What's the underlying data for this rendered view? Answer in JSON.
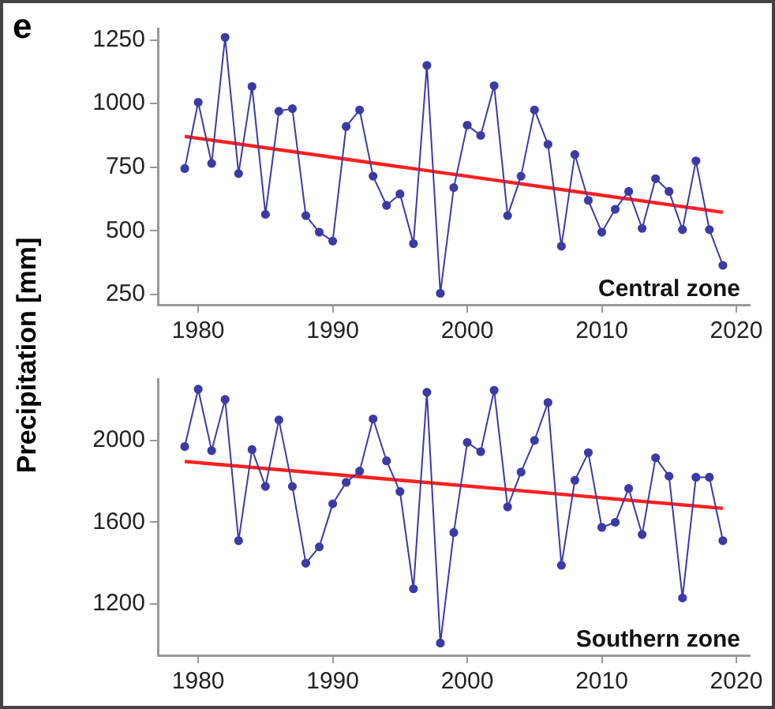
{
  "chart_data": [
    {
      "type": "line",
      "title": "e",
      "ylabel": "Precipitation [mm]",
      "annotations": [
        "Central zone"
      ],
      "marker": "circle",
      "grid": false,
      "legend": false,
      "x": [
        1979,
        1980,
        1981,
        1982,
        1983,
        1984,
        1985,
        1986,
        1987,
        1988,
        1989,
        1990,
        1991,
        1992,
        1993,
        1994,
        1995,
        1996,
        1997,
        1998,
        1999,
        2000,
        2001,
        2002,
        2003,
        2004,
        2005,
        2006,
        2007,
        2008,
        2009,
        2010,
        2011,
        2012,
        2013,
        2014,
        2015,
        2016,
        2017,
        2018,
        2019
      ],
      "xlim": [
        1977,
        2021
      ],
      "xticks": [
        1980,
        1990,
        2000,
        2010,
        2020
      ],
      "ylim": [
        210,
        1295
      ],
      "yticks": [
        250,
        500,
        750,
        1000,
        1250
      ],
      "series": [
        {
          "color": "#3b3ba6",
          "values": [
            745,
            1005,
            765,
            1260,
            725,
            1067,
            565,
            970,
            980,
            560,
            495,
            460,
            910,
            975,
            715,
            600,
            645,
            450,
            1150,
            255,
            670,
            915,
            875,
            1070,
            560,
            715,
            975,
            840,
            440,
            800,
            620,
            495,
            585,
            655,
            510,
            705,
            655,
            505,
            775,
            505,
            365
          ]
        },
        {
          "type": "line",
          "color": "#ff2020",
          "marker": "none",
          "values": [
            871,
            null,
            null,
            null,
            null,
            null,
            null,
            null,
            null,
            null,
            null,
            null,
            null,
            null,
            null,
            null,
            null,
            null,
            null,
            null,
            null,
            null,
            null,
            null,
            null,
            null,
            null,
            null,
            null,
            null,
            null,
            null,
            null,
            null,
            null,
            null,
            null,
            null,
            null,
            null,
            573
          ]
        }
      ]
    },
    {
      "type": "line",
      "annotations": [
        "Southern zone"
      ],
      "marker": "circle",
      "grid": false,
      "legend": false,
      "x": [
        1979,
        1980,
        1981,
        1982,
        1983,
        1984,
        1985,
        1986,
        1987,
        1988,
        1989,
        1990,
        1991,
        1992,
        1993,
        1994,
        1995,
        1996,
        1997,
        1998,
        1999,
        2000,
        2001,
        2002,
        2003,
        2004,
        2005,
        2006,
        2007,
        2008,
        2009,
        2010,
        2011,
        2012,
        2013,
        2014,
        2015,
        2016,
        2017,
        2018,
        2019
      ],
      "xlim": [
        1977,
        2021
      ],
      "xticks": [
        1980,
        1990,
        2000,
        2010,
        2020
      ],
      "ylim": [
        950,
        2300
      ],
      "yticks": [
        1200,
        1600,
        2000
      ],
      "series": [
        {
          "color": "#3b3ba6",
          "values": [
            1970,
            2250,
            1950,
            2200,
            1510,
            1955,
            1775,
            2100,
            1775,
            1400,
            1480,
            1690,
            1795,
            1850,
            2105,
            1900,
            1750,
            1275,
            2235,
            1010,
            1550,
            1990,
            1945,
            2245,
            1675,
            1845,
            2000,
            2185,
            1390,
            1805,
            1940,
            1575,
            1600,
            1765,
            1540,
            1915,
            1825,
            1230,
            1820,
            1820,
            1510
          ]
        },
        {
          "type": "line",
          "color": "#ff2020",
          "marker": "none",
          "values": [
            1897,
            null,
            null,
            null,
            null,
            null,
            null,
            null,
            null,
            null,
            null,
            null,
            null,
            null,
            null,
            null,
            null,
            null,
            null,
            null,
            null,
            null,
            null,
            null,
            null,
            null,
            null,
            null,
            null,
            null,
            null,
            null,
            null,
            null,
            null,
            null,
            null,
            null,
            null,
            null,
            1668
          ]
        }
      ]
    }
  ]
}
